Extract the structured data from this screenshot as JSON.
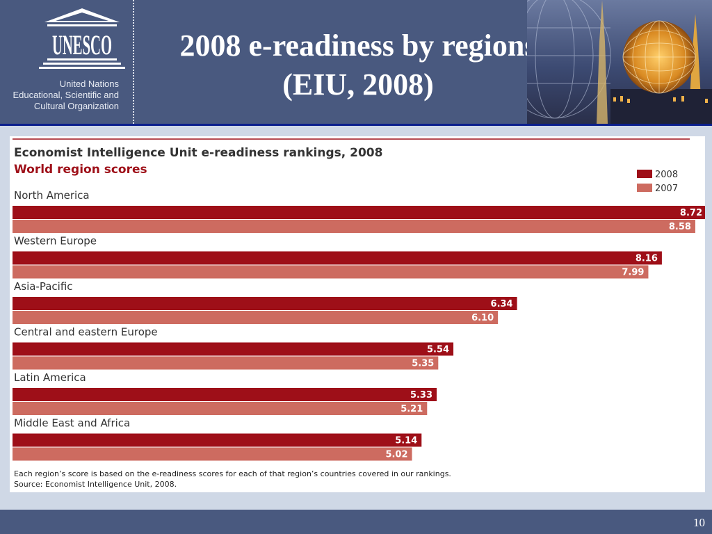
{
  "slide": {
    "title_line1": "2008 e-readiness by regions",
    "title_line2": "(EIU, 2008)",
    "page_number": "10"
  },
  "logo": {
    "wordmark": "UNESCO",
    "org_line1": "United Nations",
    "org_line2": "Educational, Scientific and",
    "org_line3": "Cultural Organization"
  },
  "chart_data": {
    "type": "bar",
    "orientation": "horizontal",
    "title": "Economist Intelligence Unit e-readiness rankings, 2008",
    "subtitle": "World region scores",
    "categories": [
      "North America",
      "Western Europe",
      "Asia-Pacific",
      "Central and eastern Europe",
      "Latin America",
      "Middle East and Africa"
    ],
    "series": [
      {
        "name": "2008",
        "color": "#9e0f18",
        "values": [
          8.72,
          8.16,
          6.34,
          5.54,
          5.33,
          5.14
        ],
        "labels": [
          "8.72",
          "8.16",
          "6.34",
          "5.54",
          "5.33",
          "5.14"
        ]
      },
      {
        "name": "2007",
        "color": "#cd6b60",
        "values": [
          8.58,
          7.99,
          6.1,
          5.35,
          5.21,
          5.02
        ],
        "labels": [
          "8.58",
          "7.99",
          "6.10",
          "5.35",
          "5.21",
          "5.02"
        ]
      }
    ],
    "xlim": [
      0,
      8.72
    ],
    "grid": false,
    "legend_position": "top-right",
    "footnote": "Each region’s score is based on the e-readiness scores for each of that region’s countries covered in our rankings.",
    "source": "Source: Economist Intelligence Unit, 2008."
  }
}
